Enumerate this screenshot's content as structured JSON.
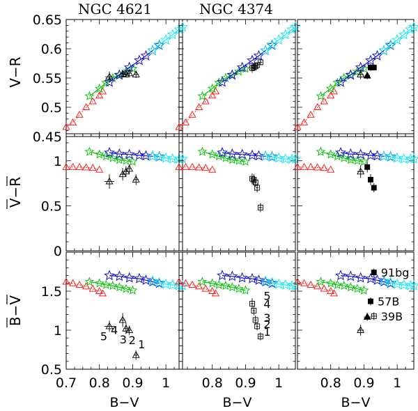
{
  "chart_data": {
    "type": "scatter",
    "panel_titles": [
      "NGC 4621",
      "NGC 4374"
    ],
    "xlabel": "B−V",
    "row_ylabels": [
      "V−R",
      "V−R",
      "B−V"
    ],
    "row_ylabel_overbar": [
      false,
      true,
      true
    ],
    "xlim": [
      0.7,
      1.05
    ],
    "xticks": [
      0.7,
      0.8,
      0.9,
      1.0
    ],
    "xtick_labels": [
      "0.7",
      "0.8",
      "0.9",
      "1"
    ],
    "rows": [
      {
        "ylim": [
          0.45,
          0.65
        ],
        "yticks": [
          0.45,
          0.5,
          0.55,
          0.6,
          0.65
        ],
        "ytick_labels": [
          "0.45",
          "0.5",
          "0.55",
          "0.6",
          "0.65"
        ]
      },
      {
        "ylim": [
          0.0,
          1.3
        ],
        "yticks": [
          0,
          0.5,
          1
        ],
        "ytick_labels": [
          "0",
          "0.5",
          "1"
        ]
      },
      {
        "ylim": [
          0.5,
          2.0
        ],
        "yticks": [
          0.5,
          1,
          1.5
        ],
        "ytick_labels": [
          "0.5",
          "1",
          "1.5"
        ]
      }
    ],
    "model_tracks": [
      {
        "name": "red",
        "color": "#ff2020",
        "style": "dotted",
        "row_points": [
          [
            [
              0.7,
              0.466
            ],
            [
              0.72,
              0.474
            ],
            [
              0.74,
              0.487
            ],
            [
              0.76,
              0.5
            ],
            [
              0.78,
              0.51
            ],
            [
              0.8,
              0.52
            ],
            [
              0.81,
              0.527
            ]
          ],
          [
            [
              0.7,
              0.93
            ],
            [
              0.72,
              0.93
            ],
            [
              0.74,
              0.93
            ],
            [
              0.76,
              0.925
            ],
            [
              0.78,
              0.92
            ],
            [
              0.8,
              0.9
            ]
          ],
          [
            [
              0.7,
              1.62
            ],
            [
              0.72,
              1.6
            ],
            [
              0.74,
              1.58
            ],
            [
              0.76,
              1.56
            ],
            [
              0.78,
              1.53
            ],
            [
              0.8,
              1.5
            ],
            [
              0.81,
              1.47
            ]
          ]
        ]
      },
      {
        "name": "green",
        "color": "#10c010",
        "style": "solid",
        "row_points": [
          [
            [
              0.77,
              0.519
            ],
            [
              0.8,
              0.532
            ],
            [
              0.82,
              0.542
            ],
            [
              0.84,
              0.55
            ],
            [
              0.86,
              0.556
            ],
            [
              0.88,
              0.561
            ],
            [
              0.9,
              0.566
            ]
          ],
          [
            [
              0.77,
              1.1
            ],
            [
              0.8,
              1.07
            ],
            [
              0.82,
              1.05
            ],
            [
              0.84,
              1.03
            ],
            [
              0.86,
              1.01
            ],
            [
              0.88,
              1.0
            ],
            [
              0.9,
              0.99
            ]
          ],
          [
            [
              0.77,
              1.62
            ],
            [
              0.8,
              1.6
            ],
            [
              0.82,
              1.58
            ],
            [
              0.84,
              1.57
            ],
            [
              0.86,
              1.55
            ],
            [
              0.88,
              1.53
            ],
            [
              0.9,
              1.51
            ]
          ]
        ]
      },
      {
        "name": "blue",
        "color": "#1010d0",
        "style": "solid",
        "row_points": [
          [
            [
              0.83,
              0.543
            ],
            [
              0.86,
              0.555
            ],
            [
              0.89,
              0.568
            ],
            [
              0.92,
              0.58
            ],
            [
              0.94,
              0.588
            ],
            [
              0.96,
              0.597
            ],
            [
              0.98,
              0.606
            ]
          ],
          [
            [
              0.83,
              1.09
            ],
            [
              0.86,
              1.075
            ],
            [
              0.89,
              1.07
            ],
            [
              0.92,
              1.06
            ],
            [
              0.94,
              1.055
            ],
            [
              0.96,
              1.05
            ],
            [
              0.98,
              1.045
            ]
          ],
          [
            [
              0.83,
              1.7
            ],
            [
              0.86,
              1.69
            ],
            [
              0.89,
              1.67
            ],
            [
              0.92,
              1.66
            ],
            [
              0.94,
              1.64
            ],
            [
              0.96,
              1.62
            ],
            [
              0.98,
              1.6
            ]
          ]
        ]
      },
      {
        "name": "cyan",
        "color": "#20e8f0",
        "style": "solid",
        "row_points": [
          [
            [
              0.96,
              0.597
            ],
            [
              0.98,
              0.607
            ],
            [
              1.0,
              0.615
            ],
            [
              1.02,
              0.624
            ],
            [
              1.04,
              0.633
            ],
            [
              1.05,
              0.637
            ]
          ],
          [
            [
              0.96,
              1.05
            ],
            [
              0.98,
              1.04
            ],
            [
              1.0,
              1.03
            ],
            [
              1.02,
              1.02
            ],
            [
              1.04,
              1.02
            ],
            [
              1.05,
              1.02
            ]
          ],
          [
            [
              0.96,
              1.63
            ],
            [
              0.98,
              1.61
            ],
            [
              1.0,
              1.59
            ],
            [
              1.02,
              1.58
            ],
            [
              1.04,
              1.57
            ],
            [
              1.05,
              1.57
            ]
          ]
        ]
      }
    ],
    "galaxy_data": [
      {
        "panel_col": 0,
        "galaxy": "NGC 4621",
        "marker": "open-triangle",
        "rows": [
          [
            {
              "x": 0.83,
              "y": 0.552,
              "xerr": 0.012,
              "yerr": 0.009
            },
            {
              "x": 0.87,
              "y": 0.557,
              "xerr": 0.008,
              "yerr": 0.006
            },
            {
              "x": 0.88,
              "y": 0.556,
              "xerr": 0.007,
              "yerr": 0.005
            },
            {
              "x": 0.89,
              "y": 0.558,
              "xerr": 0.006,
              "yerr": 0.005
            },
            {
              "x": 0.91,
              "y": 0.556,
              "xerr": 0.008,
              "yerr": 0.006
            }
          ],
          [
            {
              "x": 0.83,
              "y": 0.77,
              "xerr": 0.015,
              "yerr": 0.08
            },
            {
              "x": 0.87,
              "y": 0.85,
              "xerr": 0.008,
              "yerr": 0.07
            },
            {
              "x": 0.88,
              "y": 0.88,
              "xerr": 0.007,
              "yerr": 0.06
            },
            {
              "x": 0.89,
              "y": 0.91,
              "xerr": 0.006,
              "yerr": 0.05
            },
            {
              "x": 0.91,
              "y": 0.79,
              "xerr": 0.008,
              "yerr": 0.06
            }
          ],
          [
            {
              "x": 0.83,
              "y": 1.05,
              "xerr": 0.015,
              "yerr": 0.07,
              "label": "5"
            },
            {
              "x": 0.87,
              "y": 1.13,
              "xerr": 0.008,
              "yerr": 0.09,
              "label": "4"
            },
            {
              "x": 0.88,
              "y": 1.02,
              "xerr": 0.007,
              "yerr": 0.07,
              "label": "3"
            },
            {
              "x": 0.89,
              "y": 1.0,
              "xerr": 0.006,
              "yerr": 0.06,
              "label": "2"
            },
            {
              "x": 0.91,
              "y": 0.68,
              "xerr": 0.006,
              "yerr": 0.06,
              "label": "1"
            }
          ]
        ]
      },
      {
        "panel_col": 1,
        "galaxy": "NGC 4374",
        "marker": "open-square",
        "rows": [
          [
            {
              "x": 0.92,
              "y": 0.567,
              "xerr": 0.006,
              "yerr": 0.008
            },
            {
              "x": 0.925,
              "y": 0.568,
              "xerr": 0.005,
              "yerr": 0.006
            },
            {
              "x": 0.93,
              "y": 0.57,
              "xerr": 0.004,
              "yerr": 0.006
            },
            {
              "x": 0.935,
              "y": 0.572,
              "xerr": 0.004,
              "yerr": 0.005
            },
            {
              "x": 0.945,
              "y": 0.577,
              "xerr": 0.005,
              "yerr": 0.005
            }
          ],
          [
            {
              "x": 0.92,
              "y": 0.8,
              "xerr": 0.005,
              "yerr": 0.06
            },
            {
              "x": 0.925,
              "y": 0.79,
              "xerr": 0.004,
              "yerr": 0.06
            },
            {
              "x": 0.93,
              "y": 0.76,
              "xerr": 0.004,
              "yerr": 0.05
            },
            {
              "x": 0.935,
              "y": 0.7,
              "xerr": 0.004,
              "yerr": 0.05
            },
            {
              "x": 0.945,
              "y": 0.48,
              "xerr": 0.005,
              "yerr": 0.05
            }
          ],
          [
            {
              "x": 0.92,
              "y": 1.34,
              "xerr": 0.005,
              "yerr": 0.07,
              "label": "5"
            },
            {
              "x": 0.925,
              "y": 1.25,
              "xerr": 0.004,
              "yerr": 0.06,
              "label": "4"
            },
            {
              "x": 0.93,
              "y": 1.13,
              "xerr": 0.004,
              "yerr": 0.06,
              "label": "3"
            },
            {
              "x": 0.935,
              "y": 1.05,
              "xerr": 0.004,
              "yerr": 0.05,
              "label": "2"
            },
            {
              "x": 0.945,
              "y": 0.92,
              "xerr": 0.005,
              "yerr": 0.05,
              "label": "1"
            }
          ]
        ]
      },
      {
        "panel_col": 2,
        "galaxy": "",
        "marker": "mixed",
        "rows": [
          [
            {
              "x": 0.89,
              "y": 0.556,
              "xerr": 0.01,
              "yerr": 0.008,
              "marker": "open-triangle"
            },
            {
              "x": 0.91,
              "y": 0.554,
              "xerr": 0.008,
              "yerr": 0.006,
              "marker": "filled-triangle"
            },
            {
              "x": 0.92,
              "y": 0.568,
              "xerr": 0.006,
              "yerr": 0.006,
              "marker": "filled-square"
            },
            {
              "x": 0.925,
              "y": 0.568,
              "xerr": 0.005,
              "yerr": 0.005,
              "marker": "filled-square"
            },
            {
              "x": 0.93,
              "y": 0.568,
              "xerr": 0.005,
              "yerr": 0.005,
              "marker": "filled-square"
            }
          ],
          [
            {
              "x": 0.89,
              "y": 0.88,
              "xerr": 0.01,
              "yerr": 0.07,
              "marker": "open-triangle"
            },
            {
              "x": 0.91,
              "y": 0.93,
              "xerr": 0.006,
              "yerr": 0.06,
              "marker": "filled-square"
            },
            {
              "x": 0.92,
              "y": 0.79,
              "xerr": 0.005,
              "yerr": 0.06,
              "marker": "filled-square"
            },
            {
              "x": 0.93,
              "y": 0.7,
              "xerr": 0.005,
              "yerr": 0.05,
              "marker": "filled-square"
            }
          ],
          [
            {
              "x": 0.89,
              "y": 1.0,
              "xerr": 0.01,
              "yerr": 0.07,
              "marker": "open-triangle"
            },
            {
              "x": 0.93,
              "y": 1.74,
              "xerr": 0.005,
              "yerr": 0.05,
              "marker": "filled-square",
              "label": "91bg"
            },
            {
              "x": 0.92,
              "y": 1.37,
              "xerr": 0.005,
              "yerr": 0.05,
              "marker": "filled-square",
              "label": "57B"
            },
            {
              "x": 0.91,
              "y": 1.17,
              "xerr": 0.01,
              "yerr": 0.05,
              "marker": "filled-triangle"
            },
            {
              "x": 0.93,
              "y": 1.18,
              "xerr": 0.008,
              "yerr": 0.05,
              "marker": "open-square",
              "label": "39B"
            }
          ]
        ]
      }
    ]
  }
}
